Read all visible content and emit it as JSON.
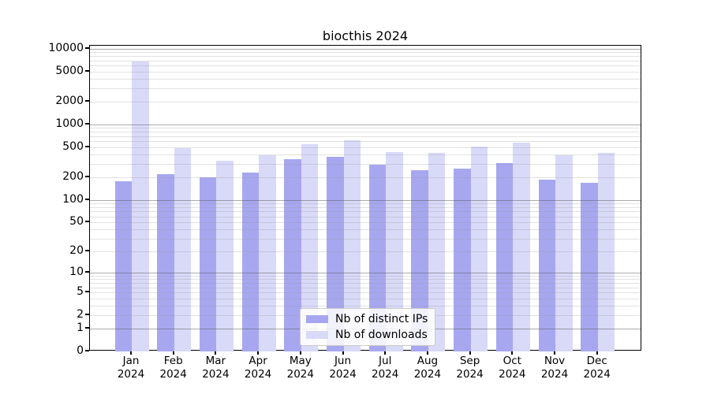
{
  "page": {
    "title": "biocthis 2024"
  },
  "chart_data": {
    "type": "bar",
    "title": "biocthis 2024",
    "categories": [
      "Jan",
      "Feb",
      "Mar",
      "Apr",
      "May",
      "Jun",
      "Jul",
      "Aug",
      "Sep",
      "Oct",
      "Nov",
      "Dec"
    ],
    "x_tick_year": "2024",
    "series": [
      {
        "name": "Nb of distinct IPs",
        "color": "#a7a7f0",
        "values": [
          175,
          220,
          200,
          230,
          350,
          370,
          290,
          250,
          260,
          305,
          185,
          170
        ]
      },
      {
        "name": "Nb of downloads",
        "color": "#d9d9f8",
        "values": [
          6800,
          490,
          330,
          390,
          550,
          620,
          430,
          420,
          515,
          580,
          390,
          420
        ]
      }
    ],
    "y_ticks": [
      0,
      1,
      2,
      5,
      10,
      20,
      50,
      100,
      200,
      500,
      1000,
      2000,
      5000,
      10000
    ],
    "y_scale": "log10(1+x)",
    "ylim": [
      0,
      11000
    ],
    "xlabel": "",
    "ylabel": "",
    "grid": "on",
    "legend_position": "inside-bottom-center"
  }
}
